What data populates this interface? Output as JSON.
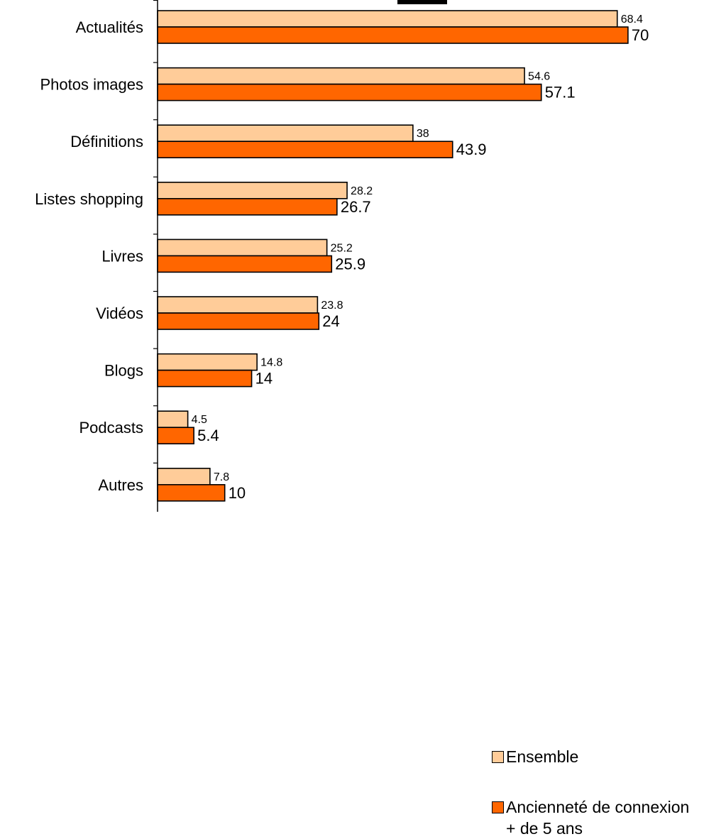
{
  "chart_data": {
    "type": "bar",
    "orientation": "horizontal",
    "categories": [
      "Actualités",
      "Photos images",
      "Définitions",
      "Listes shopping",
      "Livres",
      "Vidéos",
      "Blogs",
      "Podcasts",
      "Autres"
    ],
    "series": [
      {
        "name": "Ensemble",
        "color": "#FFCC99",
        "values": [
          68.4,
          54.6,
          38,
          28.2,
          25.2,
          23.8,
          14.8,
          4.5,
          7.8
        ]
      },
      {
        "name": "Ancienneté de connexion + de 5 ans",
        "color": "#FF6600",
        "values": [
          70,
          57.1,
          43.9,
          26.7,
          25.9,
          24,
          14,
          5.4,
          10
        ]
      }
    ],
    "xlim": [
      0,
      80
    ],
    "grid": false,
    "legend_position": "right"
  },
  "legend": {
    "items": [
      {
        "label": "Ensemble",
        "color": "#FFCC99"
      },
      {
        "label": "Ancienneté de connexion + de 5 ans",
        "color": "#FF6600"
      }
    ]
  }
}
